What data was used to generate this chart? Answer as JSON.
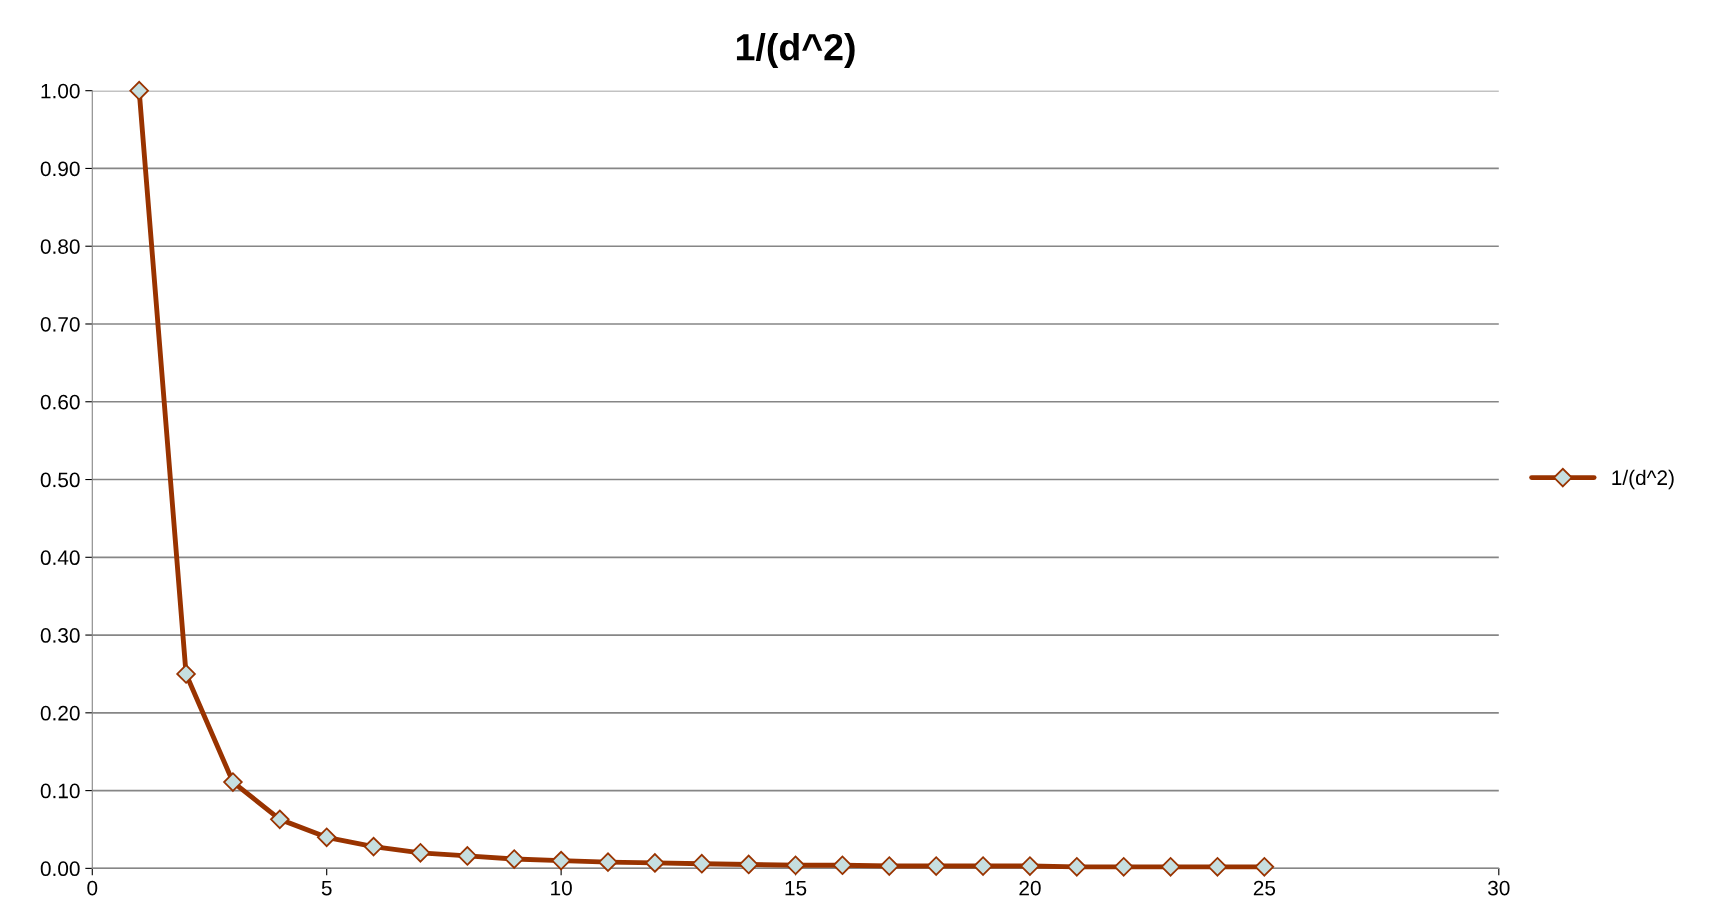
{
  "chart_data": {
    "type": "line",
    "title": "1/(d^2)",
    "x": [
      1,
      2,
      3,
      4,
      5,
      6,
      7,
      8,
      9,
      10,
      11,
      12,
      13,
      14,
      15,
      16,
      17,
      18,
      19,
      20,
      21,
      22,
      23,
      24,
      25
    ],
    "series": [
      {
        "name": "1/(d^2)",
        "color": "#993300",
        "values": [
          1.0,
          0.25,
          0.111,
          0.063,
          0.04,
          0.028,
          0.02,
          0.016,
          0.012,
          0.01,
          0.008,
          0.007,
          0.006,
          0.005,
          0.004,
          0.004,
          0.003,
          0.003,
          0.003,
          0.003,
          0.002,
          0.002,
          0.002,
          0.002,
          0.002
        ]
      }
    ],
    "xlim": [
      0,
      30
    ],
    "xticks": [
      0,
      5,
      10,
      15,
      20,
      25,
      30
    ],
    "ylim": [
      0,
      1
    ],
    "yticks": [
      {
        "value": 0,
        "label": "0.00"
      },
      {
        "value": 0.1,
        "label": "0.10"
      },
      {
        "value": 0.2,
        "label": "0.20"
      },
      {
        "value": 0.3,
        "label": "0.30"
      },
      {
        "value": 0.4,
        "label": "0.40"
      },
      {
        "value": 0.5,
        "label": "0.50"
      },
      {
        "value": 0.6,
        "label": "0.60"
      },
      {
        "value": 0.7,
        "label": "0.70"
      },
      {
        "value": 0.8,
        "label": "0.80"
      },
      {
        "value": 0.9,
        "label": "0.90"
      },
      {
        "value": 1,
        "label": "1.00"
      }
    ],
    "grid": "y",
    "legend": "right",
    "marker": "diamond",
    "line_style": "solid"
  }
}
